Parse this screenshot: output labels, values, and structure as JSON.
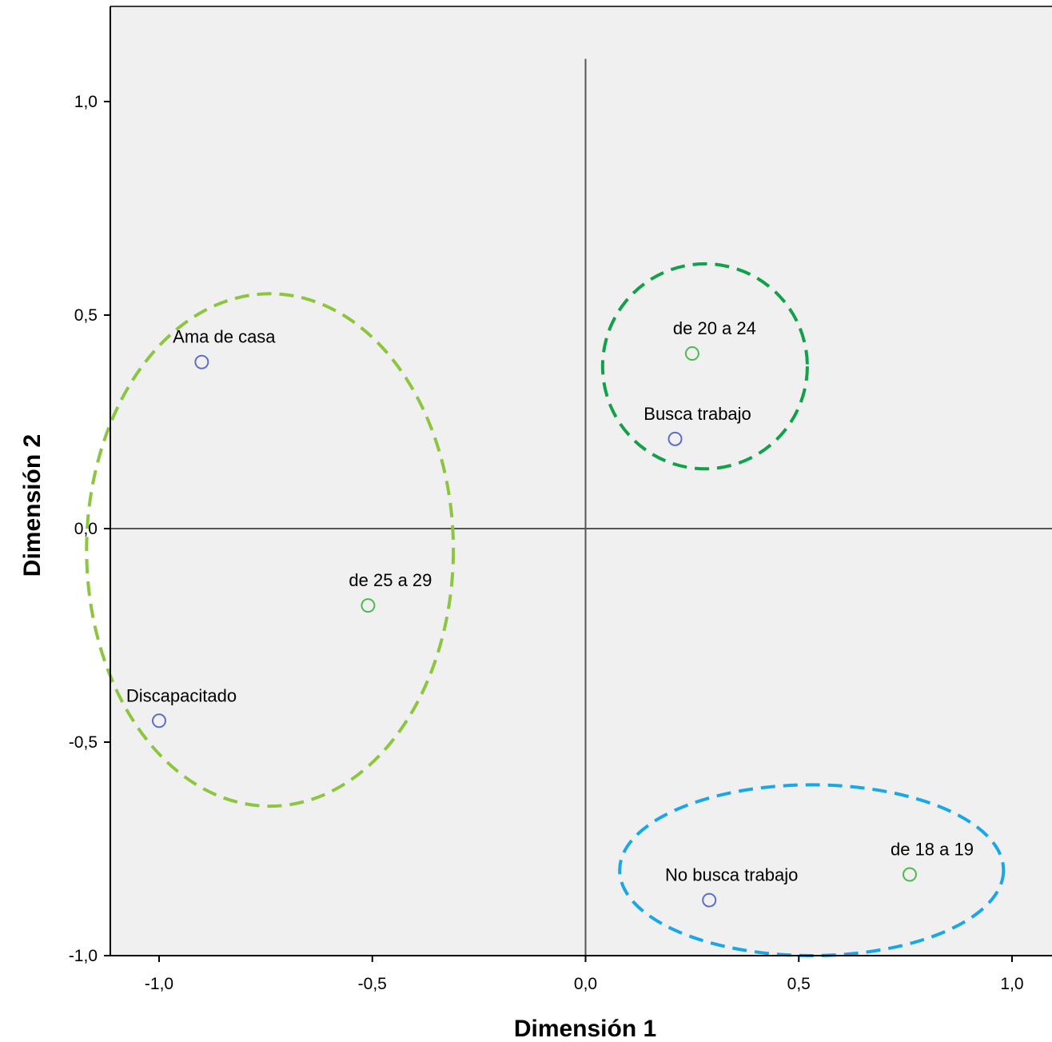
{
  "chart_data": {
    "type": "scatter",
    "title": "",
    "xlabel": "Dimensión 1",
    "ylabel": "Dimensión 2",
    "xlim": [
      -1.115,
      1.09
    ],
    "ylim": [
      -1.0,
      1.2
    ],
    "x_ticks": [
      {
        "value": -1.0,
        "label": "-1,0"
      },
      {
        "value": -0.5,
        "label": "-0,5"
      },
      {
        "value": 0.0,
        "label": "0,0"
      },
      {
        "value": 0.5,
        "label": "0,5"
      },
      {
        "value": 1.0,
        "label": "1,0"
      }
    ],
    "y_ticks": [
      {
        "value": -1.0,
        "label": "-1,0"
      },
      {
        "value": -0.5,
        "label": "-0,5"
      },
      {
        "value": 0.0,
        "label": "0,0"
      },
      {
        "value": 0.5,
        "label": "0,5"
      },
      {
        "value": 1.0,
        "label": "1,0"
      }
    ],
    "grid": false,
    "reference_lines": {
      "x": 0,
      "y": 0,
      "y_extent": [
        -1.0,
        1.1
      ]
    },
    "series": [
      {
        "color": "#5b6ec8",
        "points": [
          {
            "label": "Ama de casa",
            "x": -0.9,
            "y": 0.39
          },
          {
            "label": "Busca trabajo",
            "x": 0.21,
            "y": 0.21
          },
          {
            "label": "Discapacitado",
            "x": -1.0,
            "y": -0.45
          },
          {
            "label": "No busca trabajo",
            "x": 0.29,
            "y": -0.87
          }
        ]
      },
      {
        "color": "#4cbb4c",
        "points": [
          {
            "label": "de 20 a 24",
            "x": 0.25,
            "y": 0.41
          },
          {
            "label": "de 25 a 29",
            "x": -0.51,
            "y": -0.18
          },
          {
            "label": "de 18 a 19",
            "x": 0.76,
            "y": -0.81
          }
        ]
      }
    ],
    "annotations": [
      {
        "shape": "dashed-ellipse",
        "color": "#8cc63f",
        "cx": -0.74,
        "cy": -0.05,
        "rx": 0.43,
        "ry": 0.6
      },
      {
        "shape": "dashed-ellipse",
        "color": "#12a14a",
        "cx": 0.28,
        "cy": 0.38,
        "rx": 0.24,
        "ry": 0.24
      },
      {
        "shape": "dashed-ellipse",
        "color": "#1aa7e8",
        "cx": 0.53,
        "cy": -0.8,
        "rx": 0.45,
        "ry": 0.2
      }
    ],
    "plot_background": "#f0f0f0"
  }
}
